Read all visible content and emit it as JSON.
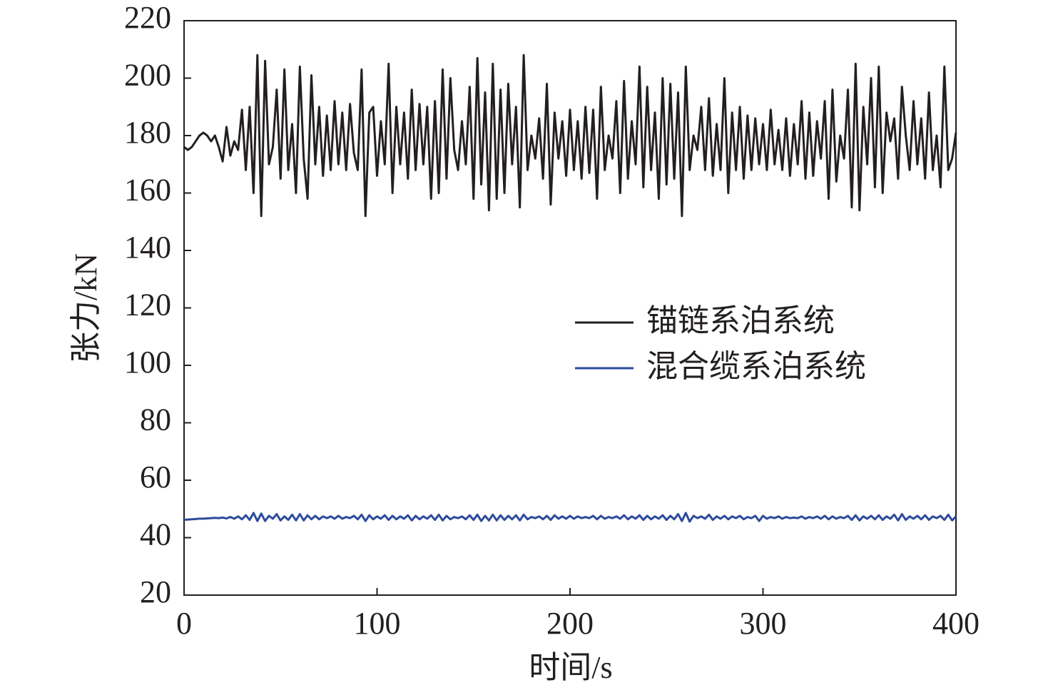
{
  "chart_data": {
    "type": "line",
    "xlabel": "时间/s",
    "ylabel": "张力/kN",
    "xlim": [
      0,
      400
    ],
    "xticks": [
      0,
      100,
      200,
      300,
      400
    ],
    "ylim": [
      20,
      220
    ],
    "yticks": [
      20,
      40,
      60,
      80,
      100,
      120,
      140,
      160,
      180,
      200,
      220
    ],
    "legend": "right",
    "x": [
      0,
      2,
      4,
      6,
      8,
      10,
      12,
      14,
      16,
      18,
      20,
      22,
      24,
      26,
      28,
      30,
      32,
      34,
      36,
      38,
      40,
      42,
      44,
      46,
      48,
      50,
      52,
      54,
      56,
      58,
      60,
      62,
      64,
      66,
      68,
      70,
      72,
      74,
      76,
      78,
      80,
      82,
      84,
      86,
      88,
      90,
      92,
      94,
      96,
      98,
      100,
      102,
      104,
      106,
      108,
      110,
      112,
      114,
      116,
      118,
      120,
      122,
      124,
      126,
      128,
      130,
      132,
      134,
      136,
      138,
      140,
      142,
      144,
      146,
      148,
      150,
      152,
      154,
      156,
      158,
      160,
      162,
      164,
      166,
      168,
      170,
      172,
      174,
      176,
      178,
      180,
      182,
      184,
      186,
      188,
      190,
      192,
      194,
      196,
      198,
      200,
      202,
      204,
      206,
      208,
      210,
      212,
      214,
      216,
      218,
      220,
      222,
      224,
      226,
      228,
      230,
      232,
      234,
      236,
      238,
      240,
      242,
      244,
      246,
      248,
      250,
      252,
      254,
      256,
      258,
      260,
      262,
      264,
      266,
      268,
      270,
      272,
      274,
      276,
      278,
      280,
      282,
      284,
      286,
      288,
      290,
      292,
      294,
      296,
      298,
      300,
      302,
      304,
      306,
      308,
      310,
      312,
      314,
      316,
      318,
      320,
      322,
      324,
      326,
      328,
      330,
      332,
      334,
      336,
      338,
      340,
      342,
      344,
      346,
      348,
      350,
      352,
      354,
      356,
      358,
      360,
      362,
      364,
      366,
      368,
      370,
      372,
      374,
      376,
      378,
      380,
      382,
      384,
      386,
      388,
      390,
      392,
      394,
      396,
      398,
      400
    ],
    "series": [
      {
        "name": "锚链系泊系统",
        "color": "#231f20",
        "values": [
          176,
          175,
          176,
          178,
          180,
          181,
          180,
          178,
          180,
          176,
          171,
          183,
          173,
          178,
          175,
          189,
          168,
          190,
          160,
          208,
          152,
          206,
          170,
          176,
          196,
          165,
          203,
          168,
          184,
          160,
          204,
          172,
          158,
          201,
          170,
          190,
          166,
          187,
          168,
          192,
          170,
          188,
          168,
          191,
          174,
          168,
          203,
          152,
          188,
          190,
          166,
          185,
          170,
          205,
          160,
          190,
          170,
          188,
          165,
          196,
          168,
          191,
          170,
          190,
          158,
          192,
          160,
          203,
          165,
          200,
          175,
          168,
          185,
          170,
          197,
          158,
          207,
          163,
          195,
          154,
          205,
          158,
          196,
          160,
          198,
          170,
          190,
          155,
          208,
          168,
          180,
          172,
          186,
          165,
          198,
          156,
          188,
          172,
          185,
          166,
          189,
          168,
          185,
          165,
          190,
          167,
          189,
          158,
          197,
          168,
          180,
          172,
          192,
          160,
          199,
          165,
          185,
          170,
          204,
          162,
          197,
          168,
          188,
          158,
          200,
          163,
          198,
          165,
          195,
          152,
          204,
          168,
          180,
          175,
          190,
          168,
          193,
          166,
          184,
          168,
          200,
          160,
          188,
          168,
          190,
          165,
          187,
          168,
          186,
          170,
          184,
          168,
          189,
          170,
          182,
          168,
          186,
          166,
          184,
          170,
          192,
          165,
          188,
          166,
          185,
          172,
          192,
          158,
          196,
          164,
          180,
          172,
          196,
          155,
          205,
          154,
          190,
          170,
          200,
          162,
          204,
          160,
          188,
          178,
          186,
          165,
          197,
          180,
          168,
          192,
          170,
          186,
          165,
          195,
          168,
          180,
          162,
          204,
          168,
          172,
          181
        ]
      },
      {
        "name": "混合缆系泊系统",
        "color": "#2e4b9b",
        "values": [
          46.2,
          46.3,
          46.4,
          46.5,
          46.6,
          46.6,
          46.7,
          46.8,
          46.9,
          46.8,
          47.0,
          46.7,
          47.2,
          46.6,
          47.4,
          46.4,
          47.8,
          46.2,
          48.6,
          45.8,
          48.4,
          45.8,
          47.6,
          46.6,
          48.2,
          46.0,
          47.4,
          46.2,
          48.0,
          46.0,
          48.2,
          46.0,
          47.8,
          46.4,
          47.6,
          46.4,
          47.4,
          46.8,
          47.4,
          46.6,
          47.6,
          46.6,
          47.2,
          46.8,
          47.6,
          46.4,
          48.0,
          45.8,
          47.8,
          46.4,
          47.4,
          46.6,
          47.8,
          46.2,
          47.6,
          46.4,
          47.4,
          46.6,
          47.8,
          46.0,
          47.6,
          46.4,
          47.4,
          46.6,
          47.8,
          46.2,
          48.0,
          46.0,
          47.6,
          46.4,
          47.2,
          46.8,
          47.4,
          46.4,
          47.8,
          46.2,
          48.0,
          45.8,
          47.6,
          46.0,
          48.0,
          46.0,
          47.8,
          46.2,
          47.6,
          46.4,
          47.8,
          46.0,
          48.0,
          46.4,
          47.2,
          46.8,
          47.4,
          46.4,
          47.6,
          46.2,
          47.8,
          46.6,
          47.4,
          46.6,
          47.6,
          46.6,
          47.4,
          46.8,
          47.2,
          46.8,
          47.6,
          46.4,
          47.6,
          46.6,
          47.2,
          46.8,
          47.4,
          46.6,
          47.8,
          46.4,
          47.4,
          46.6,
          47.8,
          46.2,
          47.6,
          46.4,
          47.4,
          46.6,
          47.8,
          46.2,
          47.6,
          46.4,
          48.2,
          45.8,
          48.6,
          45.6,
          47.6,
          46.8,
          47.4,
          46.6,
          48.0,
          46.2,
          47.4,
          46.6,
          47.6,
          46.4,
          47.4,
          46.8,
          47.6,
          46.4,
          47.2,
          46.8,
          47.6,
          45.8,
          47.6,
          46.6,
          47.2,
          46.8,
          47.4,
          46.6,
          47.2,
          46.8,
          47.0,
          46.8,
          47.4,
          46.6,
          47.2,
          46.8,
          47.4,
          46.6,
          47.6,
          46.4,
          47.4,
          46.6,
          47.2,
          46.8,
          47.6,
          46.2,
          47.8,
          46.0,
          47.4,
          46.6,
          47.6,
          46.4,
          47.8,
          46.2,
          47.4,
          46.6,
          48.0,
          46.0,
          48.2,
          46.2,
          47.4,
          46.6,
          47.6,
          46.4,
          47.8,
          46.2,
          47.4,
          46.8,
          47.6,
          46.2,
          48.0,
          46.0,
          47.4
        ]
      }
    ]
  }
}
